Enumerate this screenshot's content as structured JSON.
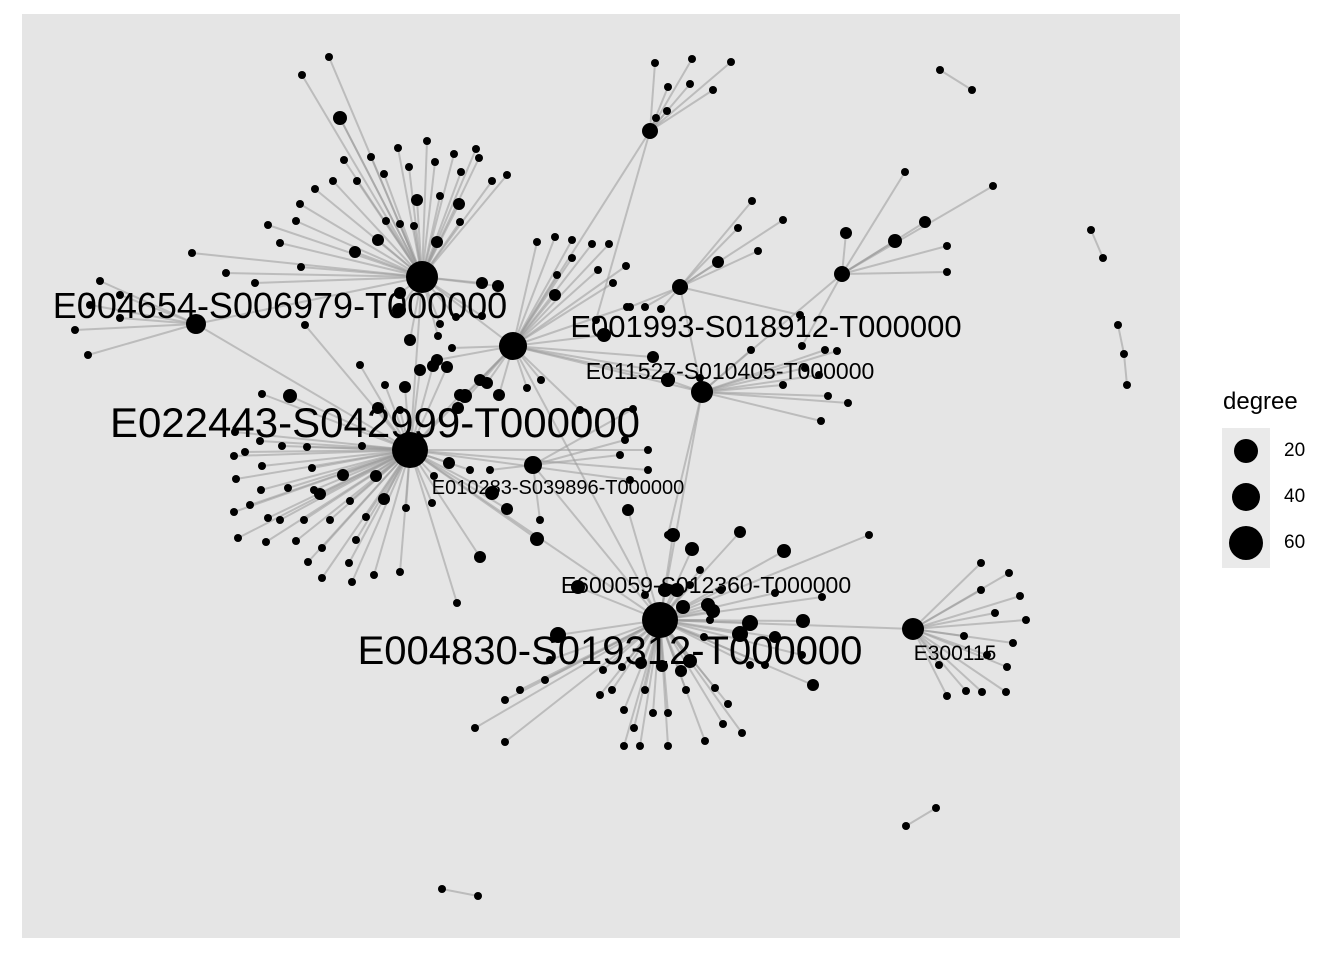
{
  "chart_data": {
    "type": "network",
    "node_size_variable": "degree",
    "legend": {
      "title": "degree",
      "placement": "right",
      "entries": [
        {
          "label": "20",
          "value": 20
        },
        {
          "label": "40",
          "value": 40
        },
        {
          "label": "60",
          "value": 60
        }
      ]
    },
    "labeled_nodes": [
      {
        "id": "E022443-S042999-T000000",
        "degree": 65
      },
      {
        "id": "E004830-S019312-T000000",
        "degree": 60
      },
      {
        "id": "E004654-S006979-T000000",
        "degree": 40
      },
      {
        "id": "E001993-S018912-T000000",
        "degree": 30
      },
      {
        "id": "E011527-S010405-T000000",
        "degree": 18
      },
      {
        "id": "E010283-S039896-T000000",
        "degree": 15
      },
      {
        "id": "E600059-S012360-T000000",
        "degree": 14
      },
      {
        "id": "E300115",
        "degree": 14
      }
    ]
  }
}
